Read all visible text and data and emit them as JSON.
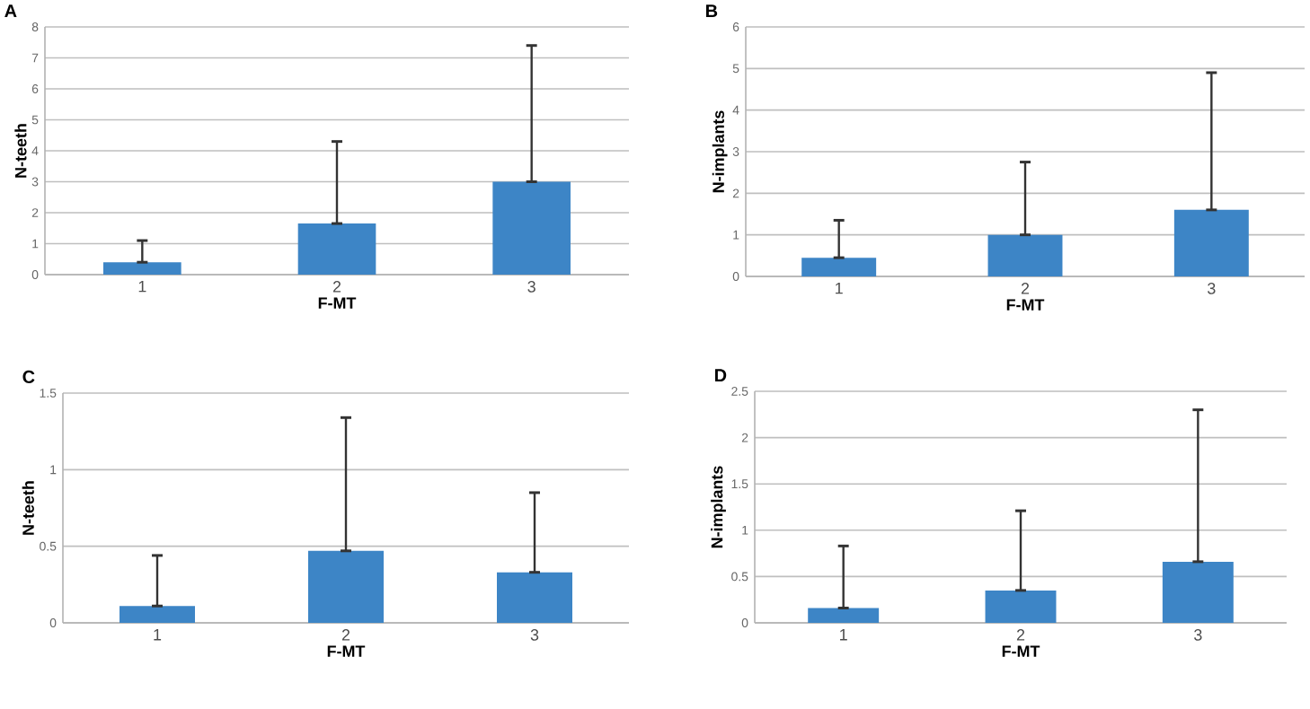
{
  "chart_data": [
    {
      "type": "bar",
      "title": "A",
      "xlabel": "F-MT",
      "ylabel": "N-teeth",
      "categories": [
        "1",
        "2",
        "3"
      ],
      "values": [
        0.4,
        1.65,
        3.0
      ],
      "errors": [
        [
          0.4,
          1.1
        ],
        [
          1.65,
          4.3
        ],
        [
          3.0,
          7.4
        ]
      ],
      "color": "#3d85c6",
      "ylim": [
        0,
        8
      ],
      "yticks": [
        0,
        1,
        2,
        3,
        4,
        5,
        6,
        7,
        8
      ],
      "grid": "y"
    },
    {
      "type": "bar",
      "title": "B",
      "xlabel": "F-MT",
      "ylabel": "N-implants",
      "categories": [
        "1",
        "2",
        "3"
      ],
      "values": [
        0.45,
        1.0,
        1.6
      ],
      "errors": [
        [
          0.45,
          1.35
        ],
        [
          1.0,
          2.75
        ],
        [
          1.6,
          4.9
        ]
      ],
      "color": "#3d85c6",
      "ylim": [
        0,
        6
      ],
      "yticks": [
        0,
        1,
        2,
        3,
        4,
        5,
        6
      ],
      "grid": "y"
    },
    {
      "type": "bar",
      "title": "C",
      "xlabel": "F-MT",
      "ylabel": "N-teeth",
      "categories": [
        "1",
        "2",
        "3"
      ],
      "values": [
        0.11,
        0.47,
        0.33
      ],
      "errors": [
        [
          0.11,
          0.44
        ],
        [
          0.47,
          1.34
        ],
        [
          0.33,
          0.85
        ]
      ],
      "color": "#3d85c6",
      "ylim": [
        0,
        1.5
      ],
      "yticks": [
        0,
        0.5,
        1,
        1.5
      ],
      "grid": "y"
    },
    {
      "type": "bar",
      "title": "D",
      "xlabel": "F-MT",
      "ylabel": "N-implants",
      "categories": [
        "1",
        "2",
        "3"
      ],
      "values": [
        0.16,
        0.35,
        0.66
      ],
      "errors": [
        [
          0.16,
          0.83
        ],
        [
          0.35,
          1.21
        ],
        [
          0.66,
          2.3
        ]
      ],
      "color": "#3d85c6",
      "ylim": [
        0,
        2.5
      ],
      "yticks": [
        0,
        0.5,
        1,
        1.5,
        2,
        2.5
      ],
      "grid": "y"
    }
  ]
}
